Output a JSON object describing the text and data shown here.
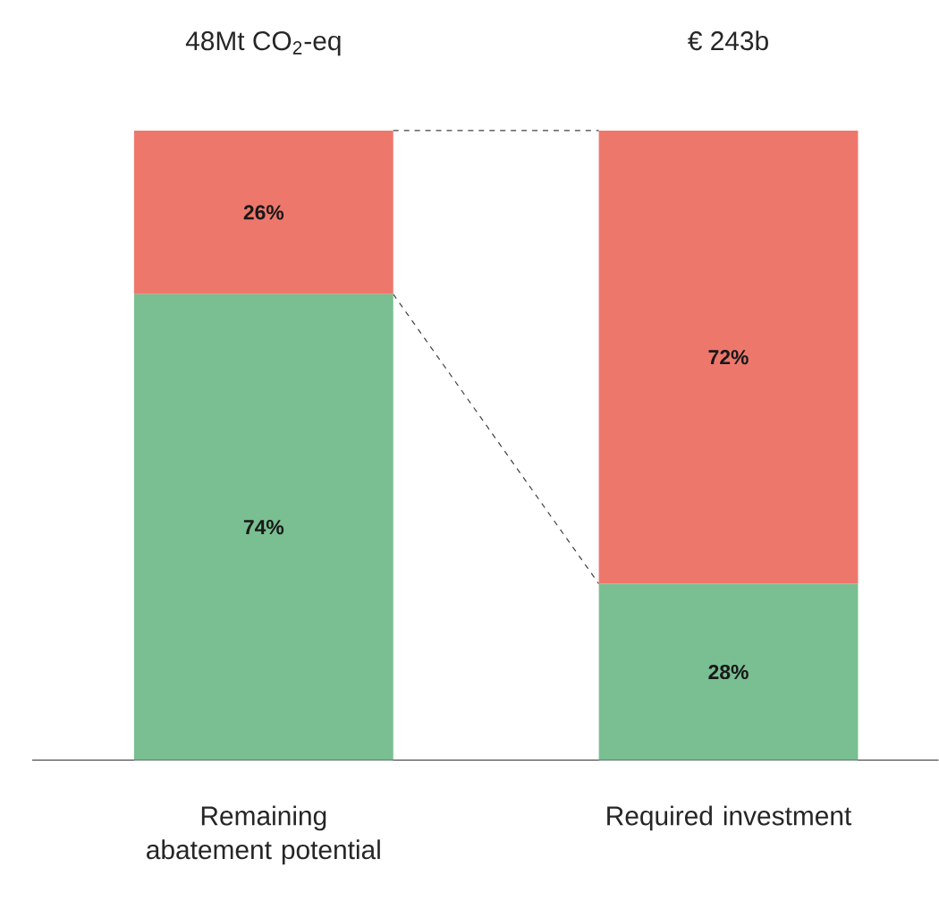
{
  "chart_data": {
    "type": "bar",
    "stacked": true,
    "tick_labels": "x",
    "categories": [
      "Remaining abatement potential",
      "Required investment"
    ],
    "series": [
      {
        "color": "#79bf91",
        "values": [
          74,
          28
        ],
        "value_labels": [
          "74%",
          "28%"
        ]
      },
      {
        "color": "#ee776c",
        "values": [
          26,
          72
        ],
        "value_labels": [
          "26%",
          "72%"
        ]
      }
    ],
    "annotations": [
      "48Mt CO$_{2}$-eq",
      "€ 243b"
    ]
  }
}
